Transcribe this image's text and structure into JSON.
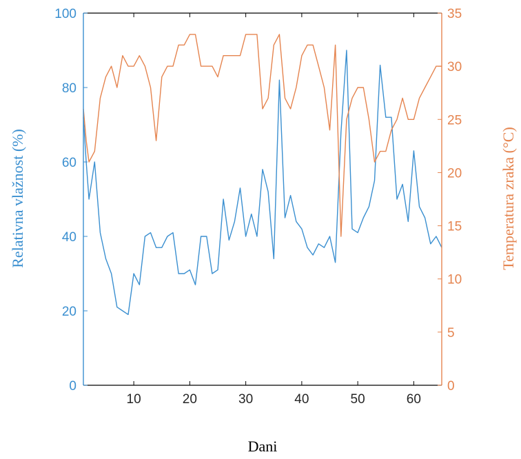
{
  "chart_data": {
    "type": "line",
    "title": "",
    "xlabel": "Dani",
    "ylabel_left": "Relativna vlažnost (%)",
    "ylabel_right": "Temperatura zraka (°C)",
    "xlim": [
      1,
      65
    ],
    "ylim_left": [
      0,
      100
    ],
    "ylim_right": [
      0,
      35
    ],
    "x_ticks": [
      10,
      20,
      30,
      40,
      50,
      60
    ],
    "y_ticks_left": [
      0,
      20,
      40,
      60,
      80,
      100
    ],
    "y_ticks_right": [
      0,
      5,
      10,
      15,
      20,
      25,
      30,
      35
    ],
    "grid": false,
    "colors": {
      "humidity": "#3a8fd0",
      "temperature": "#e5844f",
      "axis": "#000000",
      "label": "#000000"
    },
    "series": [
      {
        "axis": "left",
        "x": [
          1,
          1.5,
          2,
          3,
          4,
          5,
          6,
          7,
          8,
          9,
          10,
          11,
          12,
          13,
          14,
          15,
          16,
          17,
          18,
          19,
          20,
          21,
          22,
          23,
          24,
          25,
          26,
          27,
          28,
          29,
          30,
          31,
          32,
          33,
          34,
          35,
          36,
          37,
          38,
          39,
          40,
          41,
          42,
          43,
          44,
          45,
          46,
          47,
          48,
          49,
          50,
          51,
          52,
          53,
          54,
          55,
          56,
          57,
          58,
          59,
          60,
          61,
          62,
          63,
          64,
          65
        ],
        "values": [
          72,
          60,
          50,
          60,
          41,
          34,
          30,
          21,
          20,
          19,
          30,
          27,
          40,
          41,
          37,
          37,
          40,
          41,
          30,
          30,
          31,
          27,
          40,
          40,
          30,
          31,
          50,
          39,
          44,
          53,
          40,
          46,
          40,
          58,
          52,
          34,
          82,
          45,
          51,
          44,
          42,
          37,
          35,
          38,
          37,
          40,
          33,
          68,
          90,
          42,
          41,
          45,
          48,
          55,
          86,
          72,
          72,
          50,
          54,
          44,
          63,
          48,
          45,
          38,
          40,
          37
        ]
      },
      {
        "axis": "right",
        "x": [
          1,
          1.5,
          2,
          3,
          4,
          5,
          6,
          7,
          8,
          9,
          10,
          11,
          12,
          13,
          14,
          15,
          16,
          17,
          18,
          19,
          20,
          21,
          22,
          23,
          24,
          25,
          26,
          27,
          28,
          29,
          30,
          31,
          32,
          33,
          34,
          35,
          36,
          37,
          38,
          39,
          40,
          41,
          42,
          43,
          44,
          45,
          46,
          47,
          48,
          49,
          50,
          51,
          52,
          53,
          54,
          55,
          56,
          57,
          58,
          59,
          60,
          61,
          62,
          63,
          64,
          65
        ],
        "values": [
          26,
          23,
          21,
          22,
          27,
          29,
          30,
          28,
          31,
          30,
          30,
          31,
          30,
          28,
          23,
          29,
          30,
          30,
          32,
          32,
          33,
          33,
          30,
          30,
          30,
          29,
          31,
          31,
          31,
          31,
          33,
          33,
          33,
          26,
          27,
          32,
          33,
          27,
          26,
          28,
          31,
          32,
          32,
          30,
          28,
          24,
          32,
          14,
          25,
          27,
          28,
          28,
          25,
          21,
          22,
          22,
          24,
          25,
          27,
          25,
          25,
          27,
          28,
          29,
          30,
          30
        ]
      }
    ]
  }
}
